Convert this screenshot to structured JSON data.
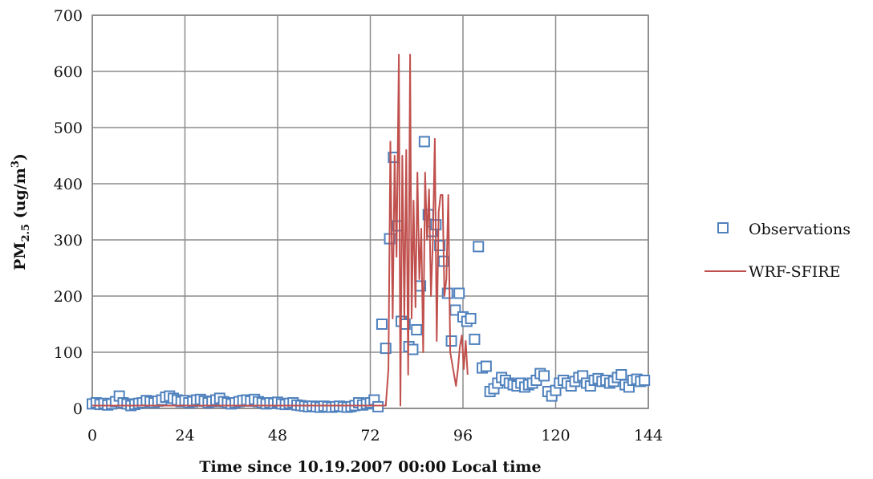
{
  "chart_data": {
    "type": "line",
    "xlabel": "Time since 10.19.2007  00:00 Local time",
    "ylabel": {
      "prefix": "PM",
      "sub": "2.5",
      "mid": " (ug/m",
      "sup": "3",
      "suffix": ")"
    },
    "xlim": [
      0,
      144
    ],
    "ylim": [
      0,
      700
    ],
    "xticks": [
      0,
      24,
      48,
      72,
      96,
      120,
      144
    ],
    "yticks": [
      0,
      100,
      200,
      300,
      400,
      500,
      600,
      700
    ],
    "grid": true,
    "legend_position": "right",
    "series": [
      {
        "name": "Observations",
        "kind": "scatter",
        "marker": "square-open",
        "color": "#4f81bd",
        "x": [
          0,
          1,
          2,
          3,
          4,
          5,
          6,
          7,
          8,
          9,
          10,
          11,
          12,
          13,
          14,
          15,
          16,
          17,
          18,
          19,
          20,
          21,
          22,
          23,
          24,
          25,
          26,
          27,
          28,
          29,
          30,
          31,
          32,
          33,
          34,
          35,
          36,
          37,
          38,
          39,
          40,
          41,
          42,
          43,
          44,
          45,
          46,
          47,
          48,
          49,
          50,
          51,
          52,
          53,
          54,
          55,
          56,
          57,
          58,
          59,
          60,
          61,
          62,
          63,
          64,
          65,
          66,
          67,
          68,
          69,
          70,
          71,
          72,
          73,
          74,
          75,
          76,
          77,
          78,
          79,
          80,
          81,
          82,
          83,
          84,
          85,
          86,
          87,
          88,
          89,
          90,
          91,
          92,
          93,
          94,
          95,
          96,
          97,
          98,
          99,
          100,
          101,
          102,
          103,
          104,
          105,
          106,
          107,
          108,
          109,
          110,
          111,
          112,
          113,
          114,
          115,
          116,
          117,
          118,
          119,
          120,
          121,
          122,
          123,
          124,
          125,
          126,
          127,
          128,
          129,
          130,
          131,
          132,
          133,
          134,
          135,
          136,
          137,
          138,
          139,
          140,
          141,
          142,
          143
        ],
        "y": [
          8,
          10,
          7,
          9,
          6,
          8,
          12,
          22,
          10,
          8,
          5,
          7,
          9,
          10,
          14,
          12,
          10,
          13,
          15,
          20,
          22,
          18,
          15,
          12,
          14,
          10,
          12,
          15,
          16,
          13,
          10,
          12,
          15,
          18,
          12,
          10,
          8,
          10,
          12,
          14,
          15,
          13,
          16,
          12,
          10,
          8,
          10,
          9,
          11,
          8,
          7,
          9,
          10,
          6,
          5,
          4,
          3,
          4,
          3,
          2,
          4,
          3,
          2,
          3,
          4,
          3,
          2,
          3,
          5,
          10,
          6,
          8,
          10,
          15,
          3,
          150,
          107,
          302,
          447,
          325,
          155,
          150,
          110,
          105,
          140,
          218,
          475,
          345,
          315,
          327,
          290,
          262,
          205,
          120,
          175,
          205,
          163,
          155,
          160,
          123,
          288,
          72,
          75,
          30,
          35,
          45,
          55,
          50,
          45,
          42,
          40,
          45,
          38,
          42,
          45,
          50,
          62,
          58,
          30,
          22,
          32,
          45,
          50,
          45,
          40,
          48,
          55,
          58,
          45,
          40,
          50,
          53,
          48,
          50,
          45,
          48,
          55,
          60,
          42,
          38,
          50,
          52,
          48,
          50
        ],
        "_note": ""
      },
      {
        "name": "WRF-SFIRE",
        "kind": "line",
        "color": "#c0504d",
        "x": [
          0,
          8,
          16,
          24,
          32,
          40,
          48,
          56,
          64,
          72,
          76,
          76.7,
          77.2,
          77.8,
          78.3,
          78.8,
          79.4,
          79.8,
          80.3,
          80.8,
          81.3,
          81.8,
          82.3,
          82.7,
          83.2,
          83.7,
          84.2,
          84.7,
          85.2,
          85.7,
          86.2,
          86.7,
          87.2,
          87.7,
          88.2,
          88.7,
          89.2,
          89.7,
          90.2,
          90.7,
          91.2,
          91.7,
          92.2,
          92.7,
          93.2,
          93.7,
          94.2,
          94.7,
          95.2,
          95.7,
          96.2,
          96.7,
          97.2
        ],
        "y": [
          5,
          5,
          5,
          5,
          5,
          5,
          5,
          5,
          5,
          5,
          5,
          70,
          475,
          160,
          450,
          270,
          630,
          5,
          450,
          160,
          460,
          60,
          630,
          160,
          370,
          180,
          420,
          230,
          320,
          100,
          420,
          300,
          390,
          200,
          300,
          480,
          120,
          350,
          380,
          380,
          200,
          230,
          380,
          100,
          80,
          60,
          40,
          70,
          110,
          130,
          70,
          120,
          60
        ]
      }
    ]
  }
}
